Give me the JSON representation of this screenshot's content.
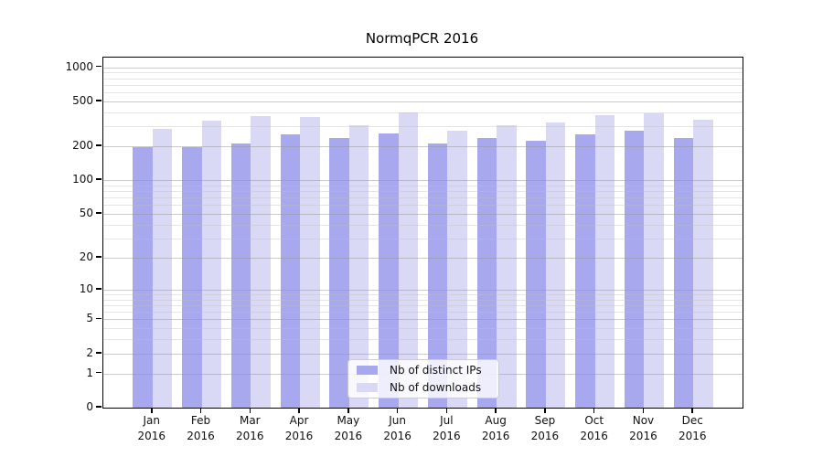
{
  "title": "NormqPCR 2016",
  "chart_data": {
    "type": "bar",
    "title": "NormqPCR 2016",
    "categories": [
      "Jan",
      "Feb",
      "Mar",
      "Apr",
      "May",
      "Jun",
      "Jul",
      "Aug",
      "Sep",
      "Oct",
      "Nov",
      "Dec"
    ],
    "x_tick_second_line": "2016",
    "series": [
      {
        "name": "Nb of distinct IPs",
        "color": "#a8a8ef",
        "values": [
          195,
          195,
          210,
          255,
          235,
          260,
          210,
          235,
          225,
          255,
          275,
          235
        ]
      },
      {
        "name": "Nb of downloads",
        "color": "#d9d9f6",
        "values": [
          285,
          340,
          370,
          365,
          310,
          400,
          275,
          305,
          325,
          375,
          395,
          345
        ]
      }
    ],
    "yscale": "log1p",
    "ylim": [
      0,
      1216
    ],
    "y_major_ticks": [
      1000,
      500,
      200,
      100,
      50,
      20,
      10,
      5,
      2,
      1,
      0
    ],
    "y_minor_ticks": [
      900,
      800,
      700,
      600,
      400,
      300,
      90,
      80,
      70,
      60,
      40,
      30,
      9,
      8,
      7,
      6,
      4,
      3
    ],
    "grid": true,
    "legend_position": "lower center",
    "xlabel": "",
    "ylabel": ""
  },
  "legend": {
    "items": [
      {
        "label": "Nb of distinct IPs",
        "color": "#a8a8ef"
      },
      {
        "label": "Nb of downloads",
        "color": "#d9d9f6"
      }
    ]
  },
  "colors": {
    "bar_distinct_ips": "#a8a8ef",
    "bar_downloads": "#d9d9f6",
    "major_gridline": "#cfcfcf",
    "minor_gridline": "#e6e6e6",
    "spine": "#000000",
    "text": "#111111",
    "background": "#ffffff"
  }
}
